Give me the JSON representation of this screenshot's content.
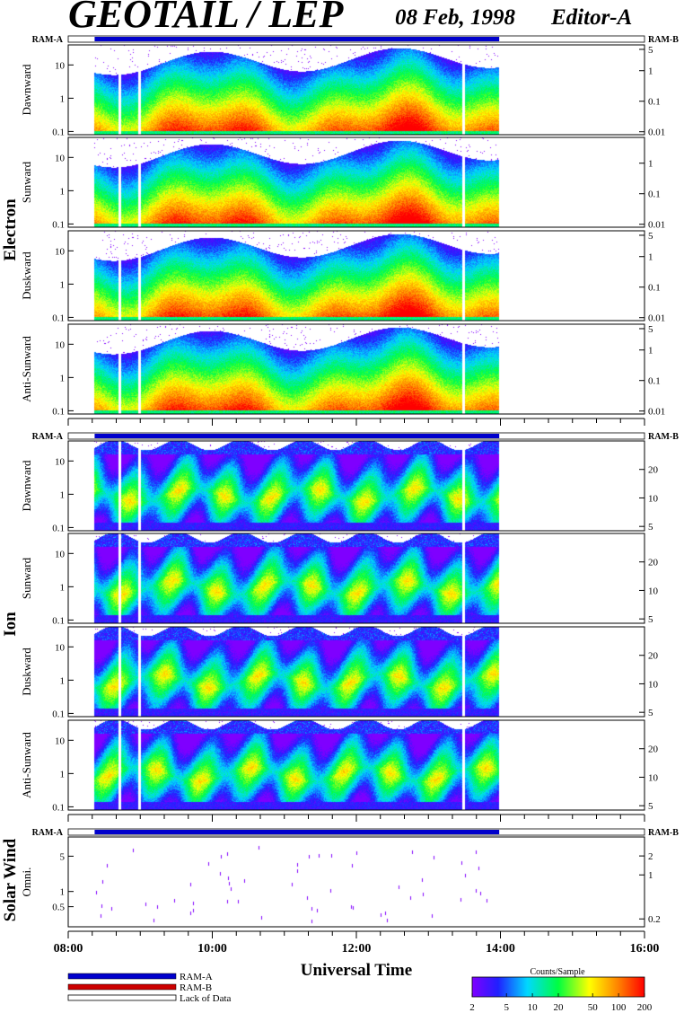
{
  "title": "GEOTAIL / LEP",
  "date": "08 Feb, 1998",
  "editor": "Editor-A",
  "ram_a": "RAM-A",
  "ram_b": "RAM-B",
  "groups": {
    "electron": "Electron",
    "ion": "Ion",
    "solar_wind": "Solar Wind"
  },
  "legend": {
    "ram_a": "RAM-A",
    "ram_b": "RAM-B",
    "lack": "Lack of Data",
    "colors": {
      "ram_a": "#0000cc",
      "ram_b": "#cc0000"
    }
  },
  "colorbar": {
    "title": "Counts/Sample",
    "ticks": [
      "2",
      "5",
      "10",
      "20",
      "50",
      "100",
      "200"
    ]
  },
  "chart_data": {
    "type": "heatmap",
    "x_label": "Universal Time",
    "x_range": [
      "08:00",
      "16:00"
    ],
    "x_tick_labels": [
      "08:00",
      "10:00",
      "12:00",
      "14:00",
      "16:00"
    ],
    "data_coverage": {
      "start": "08:22",
      "end": "13:59",
      "gaps": [
        "08:42",
        "08:58",
        "13:28"
      ]
    },
    "colorbar_range": [
      2,
      200
    ],
    "panels": [
      {
        "name": "Dawnward",
        "group": "electron",
        "left_ticks": [
          "10",
          "1",
          "0.1"
        ],
        "right_ticks": [
          "5",
          "1",
          "0.1",
          "0.01"
        ],
        "left_range": [
          0.08,
          40
        ],
        "right_range": [
          0.008,
          7
        ],
        "left_log": true,
        "right_log": true
      },
      {
        "name": "Sunward",
        "group": "electron",
        "left_ticks": [
          "10",
          "1",
          "0.1"
        ],
        "right_ticks": [
          "1",
          "0.1",
          "0.01"
        ],
        "left_range": [
          0.08,
          40
        ],
        "right_range": [
          0.008,
          7
        ],
        "left_log": true,
        "right_log": true
      },
      {
        "name": "Duskward",
        "group": "electron",
        "left_ticks": [
          "10",
          "1",
          "0.1"
        ],
        "right_ticks": [
          "5",
          "1",
          "0.1",
          "0.01"
        ],
        "left_range": [
          0.08,
          40
        ],
        "right_range": [
          0.008,
          7
        ],
        "left_log": true,
        "right_log": true
      },
      {
        "name": "Anti-Sunward",
        "group": "electron",
        "left_ticks": [
          "10",
          "1",
          "0.1"
        ],
        "right_ticks": [
          "5",
          "1",
          "0.1",
          "0.01"
        ],
        "left_range": [
          0.08,
          40
        ],
        "right_range": [
          0.008,
          7
        ],
        "left_log": true,
        "right_log": true
      },
      {
        "name": "Dawnward",
        "group": "ion",
        "left_ticks": [
          "10",
          "1",
          "0.1"
        ],
        "right_ticks": [
          "20",
          "10",
          "5"
        ],
        "left_range": [
          0.08,
          40
        ],
        "right_range": [
          4.5,
          40
        ],
        "left_log": true,
        "right_log": false
      },
      {
        "name": "Sunward",
        "group": "ion",
        "left_ticks": [
          "10",
          "1",
          "0.1"
        ],
        "right_ticks": [
          "20",
          "10",
          "5"
        ],
        "left_range": [
          0.08,
          40
        ],
        "right_range": [
          4.5,
          40
        ],
        "left_log": true,
        "right_log": false
      },
      {
        "name": "Duskward",
        "group": "ion",
        "left_ticks": [
          "10",
          "1",
          "0.1"
        ],
        "right_ticks": [
          "20",
          "10",
          "5"
        ],
        "left_range": [
          0.08,
          40
        ],
        "right_range": [
          4.5,
          40
        ],
        "left_log": true,
        "right_log": false
      },
      {
        "name": "Anti-Sunward",
        "group": "ion",
        "left_ticks": [
          "10",
          "1",
          "0.1"
        ],
        "right_ticks": [
          "20",
          "10",
          "5"
        ],
        "left_range": [
          0.08,
          40
        ],
        "right_range": [
          4.5,
          40
        ],
        "left_log": true,
        "right_log": false
      },
      {
        "name": "Omni.",
        "group": "solar_wind",
        "left_ticks": [
          "5",
          "1",
          "0.5"
        ],
        "right_ticks": [
          "2",
          "1",
          "0.2"
        ],
        "left_range": [
          0.2,
          12
        ],
        "right_range": [
          0.15,
          4
        ],
        "left_log": true,
        "right_log": true
      }
    ]
  }
}
